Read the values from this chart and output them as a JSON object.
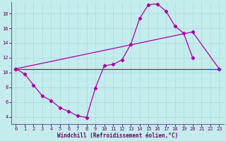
{
  "xlabel": "Windchill (Refroidissement éolien,°C)",
  "bg_color": "#c5eced",
  "line_color": "#aa00aa",
  "grid_color": "#a8d8da",
  "xlim": [
    -0.5,
    23.5
  ],
  "ylim": [
    3.0,
    19.5
  ],
  "yticks": [
    4,
    6,
    8,
    10,
    12,
    14,
    16,
    18
  ],
  "xticks": [
    0,
    1,
    2,
    3,
    4,
    5,
    6,
    7,
    8,
    9,
    10,
    11,
    12,
    13,
    14,
    15,
    16,
    17,
    18,
    19,
    20,
    21,
    22,
    23
  ],
  "line1_x": [
    0,
    1,
    2,
    3,
    4,
    5,
    6,
    7,
    8,
    9,
    10,
    11,
    12,
    13,
    14,
    15,
    16,
    17,
    18,
    19,
    20
  ],
  "line1_y": [
    10.5,
    9.8,
    8.3,
    6.8,
    6.2,
    5.2,
    4.7,
    4.1,
    3.9,
    7.9,
    10.9,
    11.1,
    11.7,
    13.8,
    17.3,
    19.2,
    19.3,
    18.3,
    16.3,
    15.3,
    12.0
  ],
  "line2_x": [
    0,
    20,
    23
  ],
  "line2_y": [
    10.5,
    15.5,
    10.5
  ],
  "line3_x": [
    0,
    23
  ],
  "line3_y": [
    10.5,
    10.5
  ],
  "tick_fontsize": 5,
  "xlabel_fontsize": 5.5
}
